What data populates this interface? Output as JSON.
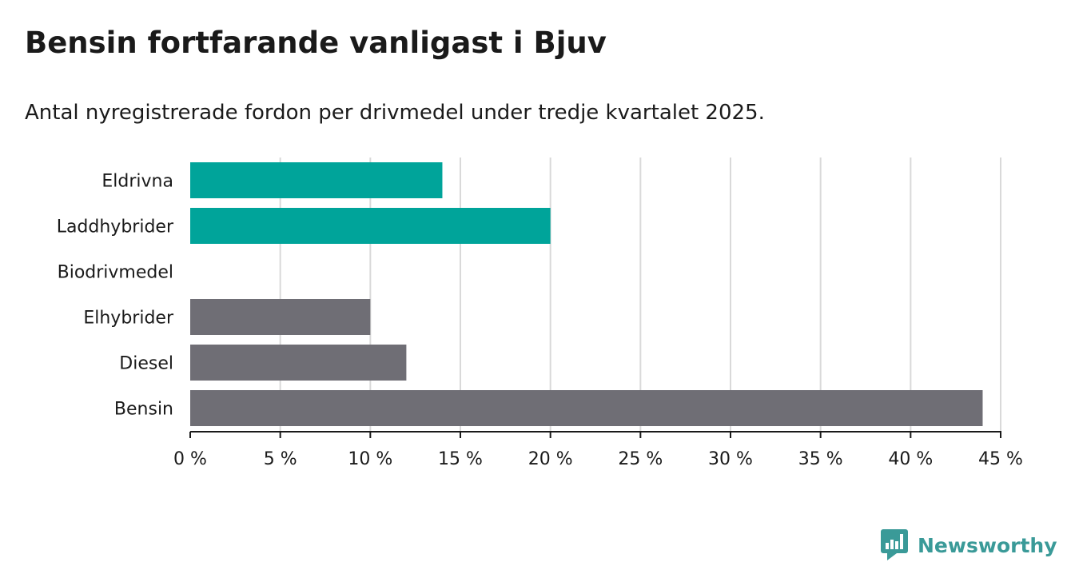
{
  "header": {
    "title": "Bensin fortfarande vanligast i Bjuv",
    "subtitle": "Antal nyregistrerade fordon per drivmedel under tredje kvartalet 2025."
  },
  "colors": {
    "teal": "#00a49a",
    "gray": "#6f6e75",
    "grid": "#d9d9d9",
    "axis": "#1a1a1a",
    "brand": "#3a9a98"
  },
  "chart_data": {
    "type": "bar",
    "orientation": "horizontal",
    "title": "Bensin fortfarande vanligast i Bjuv",
    "subtitle": "Antal nyregistrerade fordon per drivmedel under tredje kvartalet 2025.",
    "xlabel": "",
    "ylabel": "",
    "xlim": [
      0,
      45
    ],
    "ticks": [
      0,
      5,
      10,
      15,
      20,
      25,
      30,
      35,
      40,
      45
    ],
    "tick_labels": [
      "0 %",
      "5 %",
      "10 %",
      "15 %",
      "20 %",
      "25 %",
      "30 %",
      "35 %",
      "40 %",
      "45 %"
    ],
    "grid": true,
    "categories": [
      "Eldrivna",
      "Laddhybrider",
      "Biodrivmedel",
      "Elhybrider",
      "Diesel",
      "Bensin"
    ],
    "values": [
      14,
      20,
      0,
      10,
      12,
      44
    ],
    "bar_colors": [
      "teal",
      "teal",
      "teal",
      "gray",
      "gray",
      "gray"
    ]
  },
  "brand": {
    "name": "Newsworthy",
    "icon": "newsworthy-logo-icon"
  }
}
